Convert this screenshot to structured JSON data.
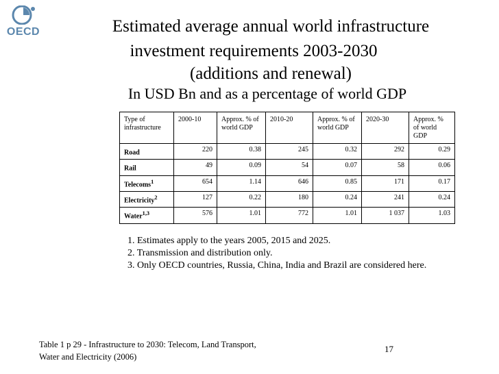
{
  "logo": {
    "text": "OECD"
  },
  "title": {
    "line1": "Estimated average annual world infrastructure",
    "line2": "investment requirements  2003-2030",
    "line3": "(additions and renewal)"
  },
  "subtitle": "In USD Bn and as a percentage of world GDP",
  "table": {
    "headers": [
      "Type of infrastructure",
      "2000-10",
      "Approx. % of world GDP",
      "2010-20",
      "Approx. % of world GDP",
      "2020-30",
      "Approx. % of world GDP"
    ],
    "rows": [
      {
        "type": "Road",
        "sup": "",
        "v1": "220",
        "p1": "0.38",
        "v2": "245",
        "p2": "0.32",
        "v3": "292",
        "p3": "0.29"
      },
      {
        "type": "Rail",
        "sup": "",
        "v1": "49",
        "p1": "0.09",
        "v2": "54",
        "p2": "0.07",
        "v3": "58",
        "p3": "0.06"
      },
      {
        "type": "Telecoms",
        "sup": "1",
        "v1": "654",
        "p1": "1.14",
        "v2": "646",
        "p2": "0.85",
        "v3": "171",
        "p3": "0.17"
      },
      {
        "type": "Electricity",
        "sup": "2",
        "v1": "127",
        "p1": "0.22",
        "v2": "180",
        "p2": "0.24",
        "v3": "241",
        "p3": "0.24"
      },
      {
        "type": "Water",
        "sup": "1,3",
        "v1": "576",
        "p1": "1.01",
        "v2": "772",
        "p2": "1.01",
        "v3": "1 037",
        "p3": "1.03"
      }
    ]
  },
  "notes": [
    "1. Estimates apply to the years 2005, 2015 and 2025.",
    "2. Transmission and distribution only.",
    "3. Only OECD countries, Russia, China, India and Brazil are considered here."
  ],
  "footer": {
    "line1": "Table 1 p 29 - Infrastructure to 2030: Telecom, Land Transport,",
    "line2": "Water and Electricity (2006)"
  },
  "page_number": "17"
}
